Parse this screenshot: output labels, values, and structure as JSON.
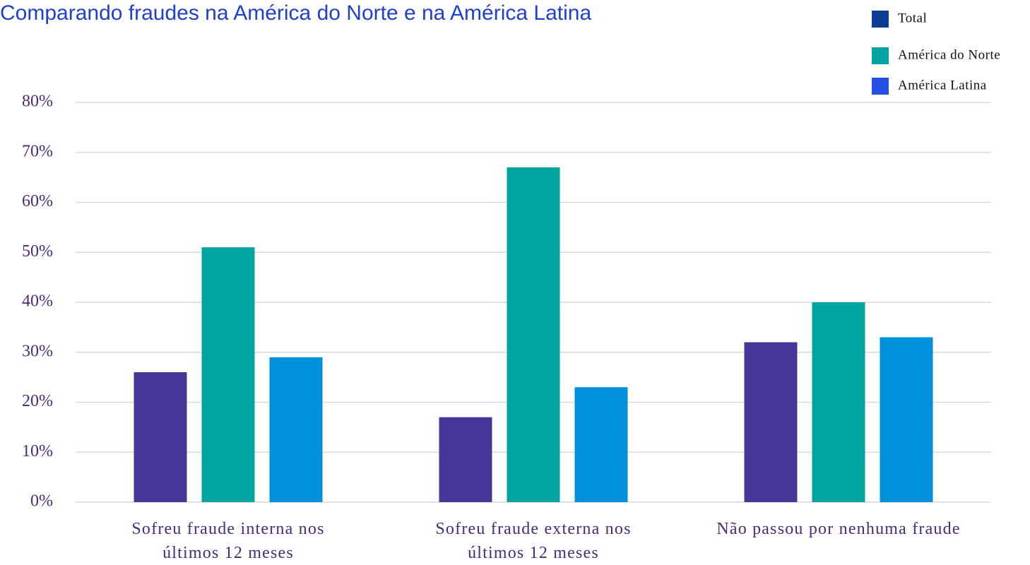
{
  "chart_data": {
    "type": "bar",
    "title": "Comparando fraudes na América do Norte e na América Latina",
    "categories": [
      "Sofreu fraude interna nos últimos 12 meses",
      "Sofreu fraude externa nos últimos 12 meses",
      "Não passou por nenhuma fraude"
    ],
    "series": [
      {
        "name": "Total",
        "color": "#483698",
        "legend_color": "#0b3c96",
        "values": [
          26,
          17,
          32
        ]
      },
      {
        "name": "América do Norte",
        "color": "#00a5a2",
        "legend_color": "#00a5a2",
        "values": [
          51,
          67,
          40
        ]
      },
      {
        "name": "América Latina",
        "color": "#0090dc",
        "legend_color": "#2550e6",
        "values": [
          29,
          23,
          33
        ]
      }
    ],
    "ylim": [
      0,
      80
    ],
    "yticks": [
      {
        "value": 0,
        "label": "0%"
      },
      {
        "value": 10,
        "label": "10%"
      },
      {
        "value": 20,
        "label": "20%"
      },
      {
        "value": 30,
        "label": "30%"
      },
      {
        "value": 40,
        "label": "40%"
      },
      {
        "value": 50,
        "label": "50%"
      },
      {
        "value": 60,
        "label": "60%"
      },
      {
        "value": 70,
        "label": "70%"
      },
      {
        "value": 80,
        "label": "80%"
      }
    ],
    "grid": true,
    "legend": "top-right"
  }
}
